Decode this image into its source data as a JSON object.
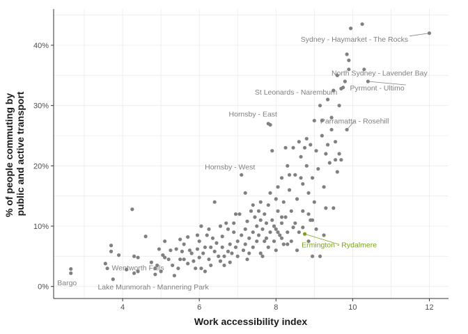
{
  "chart_data": {
    "type": "scatter",
    "xlabel": "Work accessibility index",
    "ylabel_lines": [
      "% of people commuting by",
      "public and active transport"
    ],
    "xlim": [
      2.2,
      12.5
    ],
    "ylim": [
      -0.02,
      0.46
    ],
    "x_ticks": [
      4,
      6,
      8,
      10,
      12
    ],
    "y_ticks": [
      0,
      0.1,
      0.2,
      0.3,
      0.4
    ],
    "y_tick_labels": [
      "0%",
      "10%",
      "20%",
      "30%",
      "40%"
    ],
    "grid": true,
    "point_color": "#808080",
    "highlight_color": "#7aa319",
    "annotations": [
      {
        "text": "Sydney - Haymarket - The Rocks",
        "x": 12.0,
        "y": 0.42,
        "label_x": 11.45,
        "label_y": 0.406,
        "anchor": "end",
        "line": true,
        "color": "#808080"
      },
      {
        "text": "North Sydney - Lavender Bay",
        "x": 10.3,
        "y": 0.36,
        "label_x": 11.95,
        "label_y": 0.35,
        "anchor": "end",
        "line": false,
        "color": "#808080"
      },
      {
        "text": "Pyrmont - Ultimo",
        "x": 10.4,
        "y": 0.34,
        "label_x": 11.35,
        "label_y": 0.325,
        "anchor": "end",
        "line": true,
        "color": "#808080"
      },
      {
        "text": "St Leonards - Naremburn",
        "x": 9.7,
        "y": 0.328,
        "label_x": 9.6,
        "label_y": 0.318,
        "anchor": "end",
        "line": false,
        "color": "#808080"
      },
      {
        "text": "Hornsby - East",
        "x": 7.8,
        "y": 0.27,
        "label_x": 7.4,
        "label_y": 0.282,
        "anchor": "middle",
        "line": false,
        "color": "#808080"
      },
      {
        "text": "Parramatta - Rosehill",
        "x": 9.85,
        "y": 0.26,
        "label_x": 10.05,
        "label_y": 0.27,
        "anchor": "middle",
        "line": true,
        "color": "#808080"
      },
      {
        "text": "Hornsby - West",
        "x": 7.1,
        "y": 0.185,
        "label_x": 6.8,
        "label_y": 0.194,
        "anchor": "middle",
        "line": false,
        "color": "#808080"
      },
      {
        "text": "Ermington - Rydalmere",
        "x": 8.75,
        "y": 0.087,
        "label_x": 9.65,
        "label_y": 0.065,
        "anchor": "middle",
        "line": true,
        "color": "#7aa319"
      },
      {
        "text": "Wentworth Falls",
        "x": 3.75,
        "y": 0.03,
        "label_x": 4.4,
        "label_y": 0.027,
        "anchor": "middle",
        "line": false,
        "color": "#808080"
      },
      {
        "text": "Bargo",
        "x": 2.65,
        "y": 0.02,
        "label_x": 2.55,
        "label_y": 0.002,
        "anchor": "middle",
        "line": false,
        "color": "#808080"
      },
      {
        "text": "Lake Munmorah - Mannering Park",
        "x": 3.8,
        "y": 0.012,
        "label_x": 4.8,
        "label_y": -0.005,
        "anchor": "middle",
        "line": false,
        "color": "#808080"
      }
    ],
    "points": [
      [
        2.65,
        0.029
      ],
      [
        2.65,
        0.022
      ],
      [
        3.55,
        0.038
      ],
      [
        3.6,
        0.03
      ],
      [
        3.7,
        0.068
      ],
      [
        3.7,
        0.058
      ],
      [
        3.75,
        0.012
      ],
      [
        3.9,
        0.052
      ],
      [
        4.1,
        0.028
      ],
      [
        4.25,
        0.128
      ],
      [
        4.3,
        0.05
      ],
      [
        4.3,
        0.022
      ],
      [
        4.4,
        0.048
      ],
      [
        4.4,
        0.025
      ],
      [
        4.6,
        0.083
      ],
      [
        4.75,
        0.04
      ],
      [
        4.85,
        0.03
      ],
      [
        4.85,
        0.02
      ],
      [
        4.95,
        0.062
      ],
      [
        5.0,
        0.025
      ],
      [
        5.1,
        0.075
      ],
      [
        5.1,
        0.048
      ],
      [
        5.2,
        0.045
      ],
      [
        5.3,
        0.035
      ],
      [
        5.35,
        0.018
      ],
      [
        5.4,
        0.062
      ],
      [
        5.45,
        0.03
      ],
      [
        5.5,
        0.078
      ],
      [
        5.55,
        0.058
      ],
      [
        5.6,
        0.045
      ],
      [
        5.6,
        0.07
      ],
      [
        5.7,
        0.038
      ],
      [
        5.7,
        0.082
      ],
      [
        5.8,
        0.055
      ],
      [
        5.85,
        0.042
      ],
      [
        5.9,
        0.03
      ],
      [
        5.95,
        0.062
      ],
      [
        6.0,
        0.048
      ],
      [
        6.0,
        0.075
      ],
      [
        6.05,
        0.03
      ],
      [
        6.05,
        0.1
      ],
      [
        6.1,
        0.055
      ],
      [
        6.15,
        0.025
      ],
      [
        6.2,
        0.085
      ],
      [
        6.25,
        0.045
      ],
      [
        6.3,
        0.065
      ],
      [
        6.3,
        0.035
      ],
      [
        6.4,
        0.14
      ],
      [
        6.4,
        0.058
      ],
      [
        6.45,
        0.072
      ],
      [
        6.5,
        0.05
      ],
      [
        6.55,
        0.042
      ],
      [
        6.6,
        0.083
      ],
      [
        6.6,
        0.065
      ],
      [
        6.65,
        0.05
      ],
      [
        6.7,
        0.105
      ],
      [
        6.75,
        0.058
      ],
      [
        6.8,
        0.07
      ],
      [
        6.8,
        0.04
      ],
      [
        6.85,
        0.055
      ],
      [
        6.9,
        0.09
      ],
      [
        6.95,
        0.065
      ],
      [
        7.0,
        0.075
      ],
      [
        7.0,
        0.05
      ],
      [
        7.05,
        0.12
      ],
      [
        7.1,
        0.185
      ],
      [
        7.1,
        0.085
      ],
      [
        7.15,
        0.06
      ],
      [
        7.2,
        0.095
      ],
      [
        7.2,
        0.07
      ],
      [
        7.25,
        0.108
      ],
      [
        7.3,
        0.08
      ],
      [
        7.3,
        0.055
      ],
      [
        7.35,
        0.125
      ],
      [
        7.4,
        0.09
      ],
      [
        7.4,
        0.065
      ],
      [
        7.45,
        0.115
      ],
      [
        7.5,
        0.075
      ],
      [
        7.5,
        0.1
      ],
      [
        7.55,
        0.085
      ],
      [
        7.6,
        0.14
      ],
      [
        7.6,
        0.055
      ],
      [
        7.65,
        0.095
      ],
      [
        7.7,
        0.12
      ],
      [
        7.7,
        0.075
      ],
      [
        7.75,
        0.08
      ],
      [
        7.75,
        0.105
      ],
      [
        7.8,
        0.27
      ],
      [
        7.8,
        0.135
      ],
      [
        7.8,
        0.065
      ],
      [
        7.85,
        0.268
      ],
      [
        7.85,
        0.09
      ],
      [
        7.85,
        0.155
      ],
      [
        7.9,
        0.225
      ],
      [
        7.9,
        0.11
      ],
      [
        7.95,
        0.075
      ],
      [
        8.0,
        0.145
      ],
      [
        8.0,
        0.095
      ],
      [
        8.0,
        0.06
      ],
      [
        8.05,
        0.165
      ],
      [
        8.05,
        0.125
      ],
      [
        8.1,
        0.085
      ],
      [
        8.15,
        0.105
      ],
      [
        8.15,
        0.18
      ],
      [
        8.2,
        0.07
      ],
      [
        8.2,
        0.14
      ],
      [
        8.25,
        0.115
      ],
      [
        8.3,
        0.09
      ],
      [
        8.3,
        0.2
      ],
      [
        8.35,
        0.16
      ],
      [
        8.4,
        0.125
      ],
      [
        8.4,
        0.075
      ],
      [
        8.45,
        0.23
      ],
      [
        8.5,
        0.185
      ],
      [
        8.5,
        0.105
      ],
      [
        8.55,
        0.145
      ],
      [
        8.6,
        0.24
      ],
      [
        8.6,
        0.09
      ],
      [
        8.65,
        0.215
      ],
      [
        8.7,
        0.17
      ],
      [
        8.7,
        0.125
      ],
      [
        8.75,
        0.087
      ],
      [
        8.8,
        0.245
      ],
      [
        8.8,
        0.2
      ],
      [
        8.85,
        0.155
      ],
      [
        8.9,
        0.235
      ],
      [
        8.9,
        0.11
      ],
      [
        8.95,
        0.18
      ],
      [
        9.0,
        0.275
      ],
      [
        9.0,
        0.14
      ],
      [
        9.05,
        0.225
      ],
      [
        9.1,
        0.195
      ],
      [
        9.15,
        0.3
      ],
      [
        9.15,
        0.05
      ],
      [
        9.2,
        0.25
      ],
      [
        9.25,
        0.165
      ],
      [
        9.3,
        0.22
      ],
      [
        9.35,
        0.31
      ],
      [
        9.4,
        0.205
      ],
      [
        9.45,
        0.26
      ],
      [
        9.5,
        0.13
      ],
      [
        9.5,
        0.325
      ],
      [
        9.55,
        0.24
      ],
      [
        9.6,
        0.19
      ],
      [
        9.65,
        0.3
      ],
      [
        9.7,
        0.328
      ],
      [
        9.7,
        0.21
      ],
      [
        9.8,
        0.34
      ],
      [
        9.85,
        0.26
      ],
      [
        9.85,
        0.385
      ],
      [
        9.9,
        0.36
      ],
      [
        9.9,
        0.375
      ],
      [
        9.95,
        0.428
      ],
      [
        10.25,
        0.435
      ],
      [
        10.3,
        0.36
      ],
      [
        10.4,
        0.34
      ],
      [
        12.0,
        0.42
      ],
      [
        8.15,
        0.08
      ],
      [
        8.3,
        0.07
      ],
      [
        8.45,
        0.098
      ],
      [
        8.55,
        0.06
      ],
      [
        8.7,
        0.098
      ],
      [
        8.95,
        0.11
      ],
      [
        7.95,
        0.1
      ],
      [
        7.6,
        0.11
      ],
      [
        7.4,
        0.135
      ],
      [
        7.2,
        0.155
      ],
      [
        6.95,
        0.12
      ],
      [
        6.75,
        0.095
      ],
      [
        6.55,
        0.1
      ],
      [
        6.35,
        0.08
      ],
      [
        6.25,
        0.095
      ],
      [
        6.15,
        0.065
      ],
      [
        5.95,
        0.085
      ],
      [
        5.75,
        0.06
      ],
      [
        5.5,
        0.045
      ],
      [
        5.25,
        0.06
      ],
      [
        5.05,
        0.052
      ],
      [
        4.9,
        0.035
      ],
      [
        8.35,
        0.185
      ],
      [
        8.65,
        0.18
      ],
      [
        8.85,
        0.12
      ],
      [
        9.3,
        0.13
      ],
      [
        9.55,
        0.21
      ],
      [
        9.05,
        0.095
      ],
      [
        8.15,
        0.115
      ],
      [
        8.25,
        0.23
      ],
      [
        8.75,
        0.23
      ],
      [
        9.35,
        0.235
      ],
      [
        9.2,
        0.275
      ],
      [
        9.45,
        0.28
      ],
      [
        9.65,
        0.22
      ],
      [
        9.75,
        0.33
      ],
      [
        9.6,
        0.35
      ],
      [
        8.95,
        0.05
      ],
      [
        7.65,
        0.05
      ],
      [
        7.25,
        0.045
      ],
      [
        6.65,
        0.035
      ],
      [
        6.9,
        0.105
      ],
      [
        7.55,
        0.125
      ],
      [
        8.05,
        0.09
      ],
      [
        8.85,
        0.075
      ],
      [
        9.25,
        0.085
      ]
    ]
  }
}
